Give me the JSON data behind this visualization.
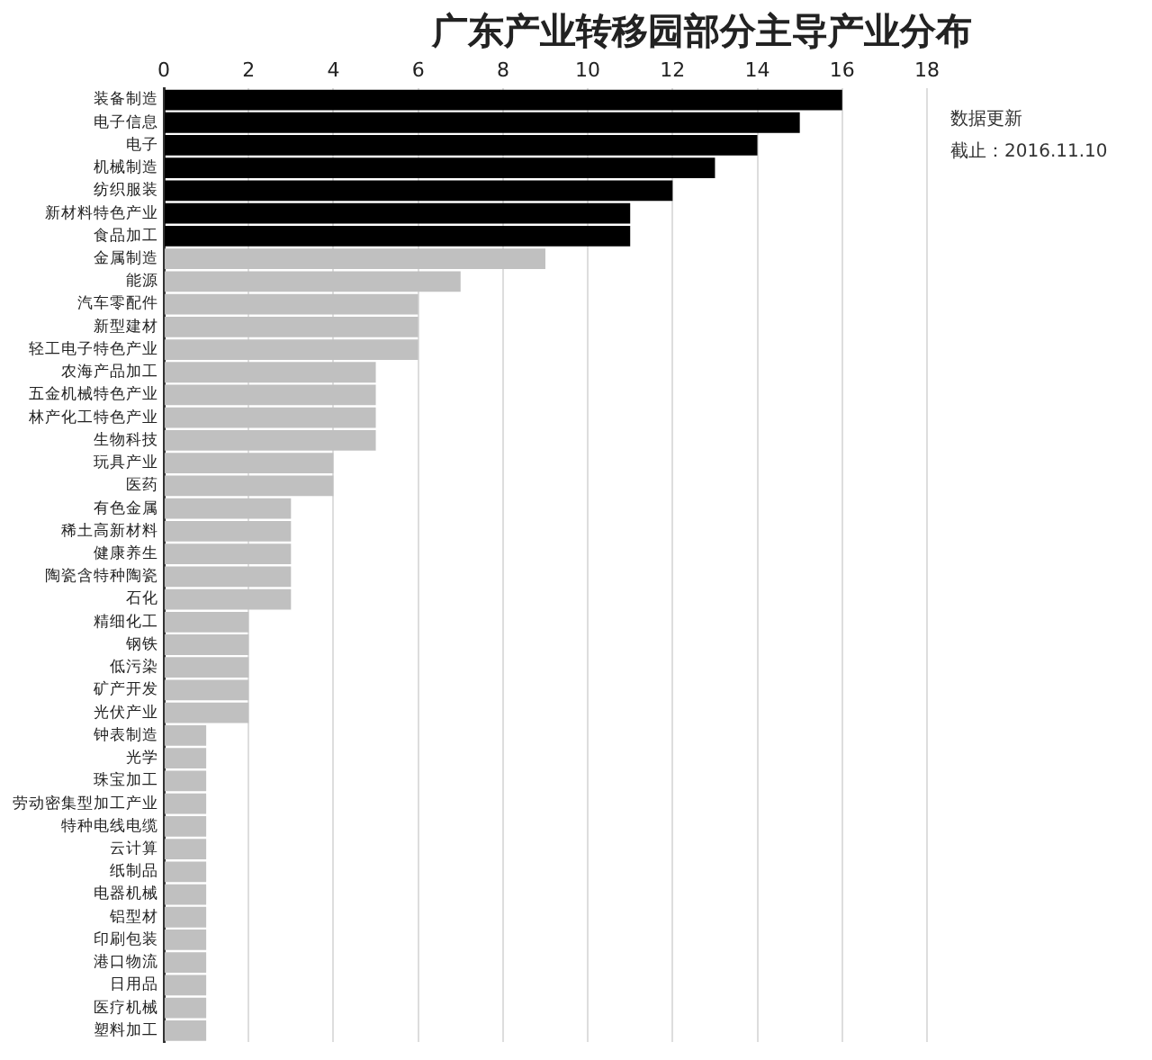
{
  "chart_data": {
    "type": "bar",
    "orientation": "horizontal",
    "title": "广东产业转移园部分主导产业分布",
    "categories": [
      "装备制造",
      "电子信息",
      "电子",
      "机械制造",
      "纺织服装",
      "新材料特色产业",
      "食品加工",
      "金属制造",
      "能源",
      "汽车零配件",
      "新型建材",
      "轻工电子特色产业",
      "农海产品加工",
      "五金机械特色产业",
      "林产化工特色产业",
      "生物科技",
      "玩具产业",
      "医药",
      "有色金属",
      "稀土高新材料",
      "健康养生",
      "陶瓷含特种陶瓷",
      "石化",
      "精细化工",
      "钢铁",
      "低污染",
      "矿产开发",
      "光伏产业",
      "钟表制造",
      "光学",
      "珠宝加工",
      "劳动密集型加工产业",
      "特种电线电缆",
      "云计算",
      "纸制品",
      "电器机械",
      "铝型材",
      "印刷包装",
      "港口物流",
      "日用品",
      "医疗机械",
      "塑料加工"
    ],
    "values": [
      16,
      15,
      14,
      13,
      12,
      11,
      11,
      9,
      7,
      6,
      6,
      6,
      5,
      5,
      5,
      5,
      4,
      4,
      3,
      3,
      3,
      3,
      3,
      2,
      2,
      2,
      2,
      2,
      1,
      1,
      1,
      1,
      1,
      1,
      1,
      1,
      1,
      1,
      1,
      1,
      1,
      1
    ],
    "colors": [
      "#000000",
      "#000000",
      "#000000",
      "#000000",
      "#000000",
      "#000000",
      "#000000",
      "#c0c0c0",
      "#c0c0c0",
      "#c0c0c0",
      "#c0c0c0",
      "#c0c0c0",
      "#c0c0c0",
      "#c0c0c0",
      "#c0c0c0",
      "#c0c0c0",
      "#c0c0c0",
      "#c0c0c0",
      "#c0c0c0",
      "#c0c0c0",
      "#c0c0c0",
      "#c0c0c0",
      "#c0c0c0",
      "#c0c0c0",
      "#c0c0c0",
      "#c0c0c0",
      "#c0c0c0",
      "#c0c0c0",
      "#c0c0c0",
      "#c0c0c0",
      "#c0c0c0",
      "#c0c0c0",
      "#c0c0c0",
      "#c0c0c0",
      "#c0c0c0",
      "#c0c0c0",
      "#c0c0c0",
      "#c0c0c0",
      "#c0c0c0",
      "#c0c0c0",
      "#c0c0c0",
      "#c0c0c0"
    ],
    "xlim": [
      0,
      18
    ],
    "xticks": [
      0,
      2,
      4,
      6,
      8,
      10,
      12,
      14,
      16,
      18
    ],
    "grid": "x",
    "legend": false,
    "annotations": [
      "数据更新",
      "截止：2016.11.10"
    ]
  }
}
